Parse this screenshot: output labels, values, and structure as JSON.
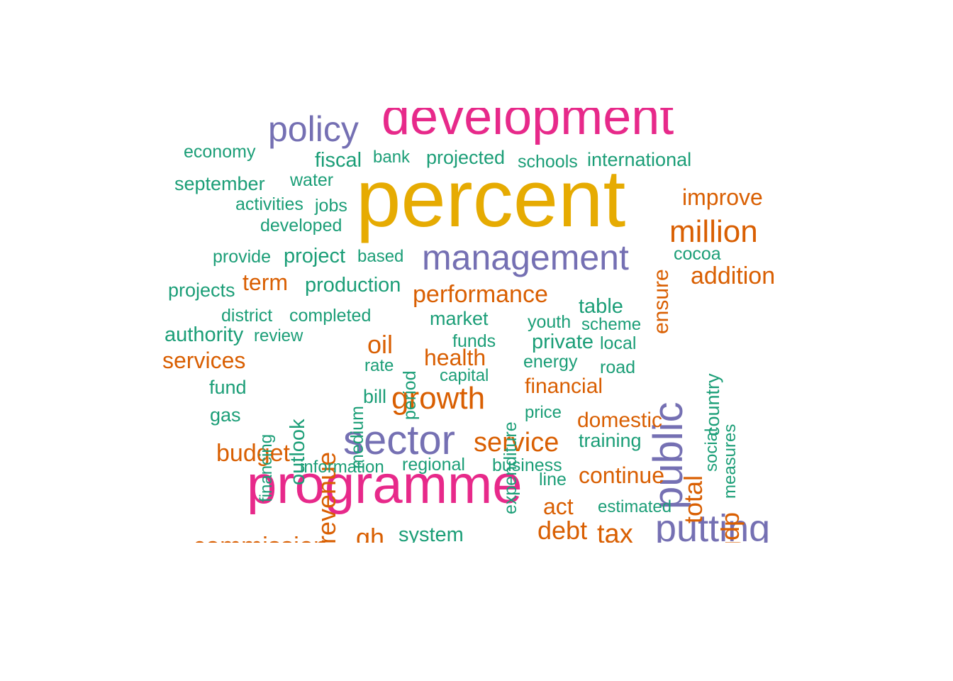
{
  "colors": {
    "gold": "#e6ab02",
    "pink": "#e7298a",
    "purple": "#7570b3",
    "orange": "#d95f02",
    "teal": "#1b9e77"
  },
  "words": {
    "percent": "percent",
    "development": "development",
    "programme": "programme",
    "policy": "policy",
    "management": "management",
    "sector": "sector",
    "public": "public",
    "putting": "putting",
    "million": "million",
    "growth": "growth",
    "improve": "improve",
    "addition": "addition",
    "ensure": "ensure",
    "performance": "performance",
    "revenue": "revenue",
    "service": "service",
    "budget": "budget",
    "services": "services",
    "term": "term",
    "oil": "oil",
    "health": "health",
    "financial": "financial",
    "domestic": "domestic",
    "continue": "continue",
    "total": "total",
    "gdp": "gdp",
    "act": "act",
    "debt": "debt",
    "tax": "tax",
    "commission": "commission",
    "gh": "gh",
    "economy": "economy",
    "fiscal": "fiscal",
    "bank": "bank",
    "projected": "projected",
    "schools": "schools",
    "international": "international",
    "september": "september",
    "water": "water",
    "activities": "activities",
    "jobs": "jobs",
    "developed": "developed",
    "provide": "provide",
    "project": "project",
    "based": "based",
    "cocoa": "cocoa",
    "projects": "projects",
    "production": "production",
    "district": "district",
    "completed": "completed",
    "market": "market",
    "table": "table",
    "youth": "youth",
    "scheme": "scheme",
    "authority": "authority",
    "review": "review",
    "funds": "funds",
    "private": "private",
    "local": "local",
    "period": "period",
    "medium": "medium",
    "outlook": "outlook",
    "rate": "rate",
    "energy": "energy",
    "road": "road",
    "capital": "capital",
    "expenditure": "expenditure",
    "country": "country",
    "social": "social",
    "measures": "measures",
    "fund": "fund",
    "financing": "financing",
    "bill": "bill",
    "price": "price",
    "gas": "gas",
    "training": "training",
    "information": "information",
    "regional": "regional",
    "business": "business",
    "line": "line",
    "estimated": "estimated",
    "system": "system"
  }
}
